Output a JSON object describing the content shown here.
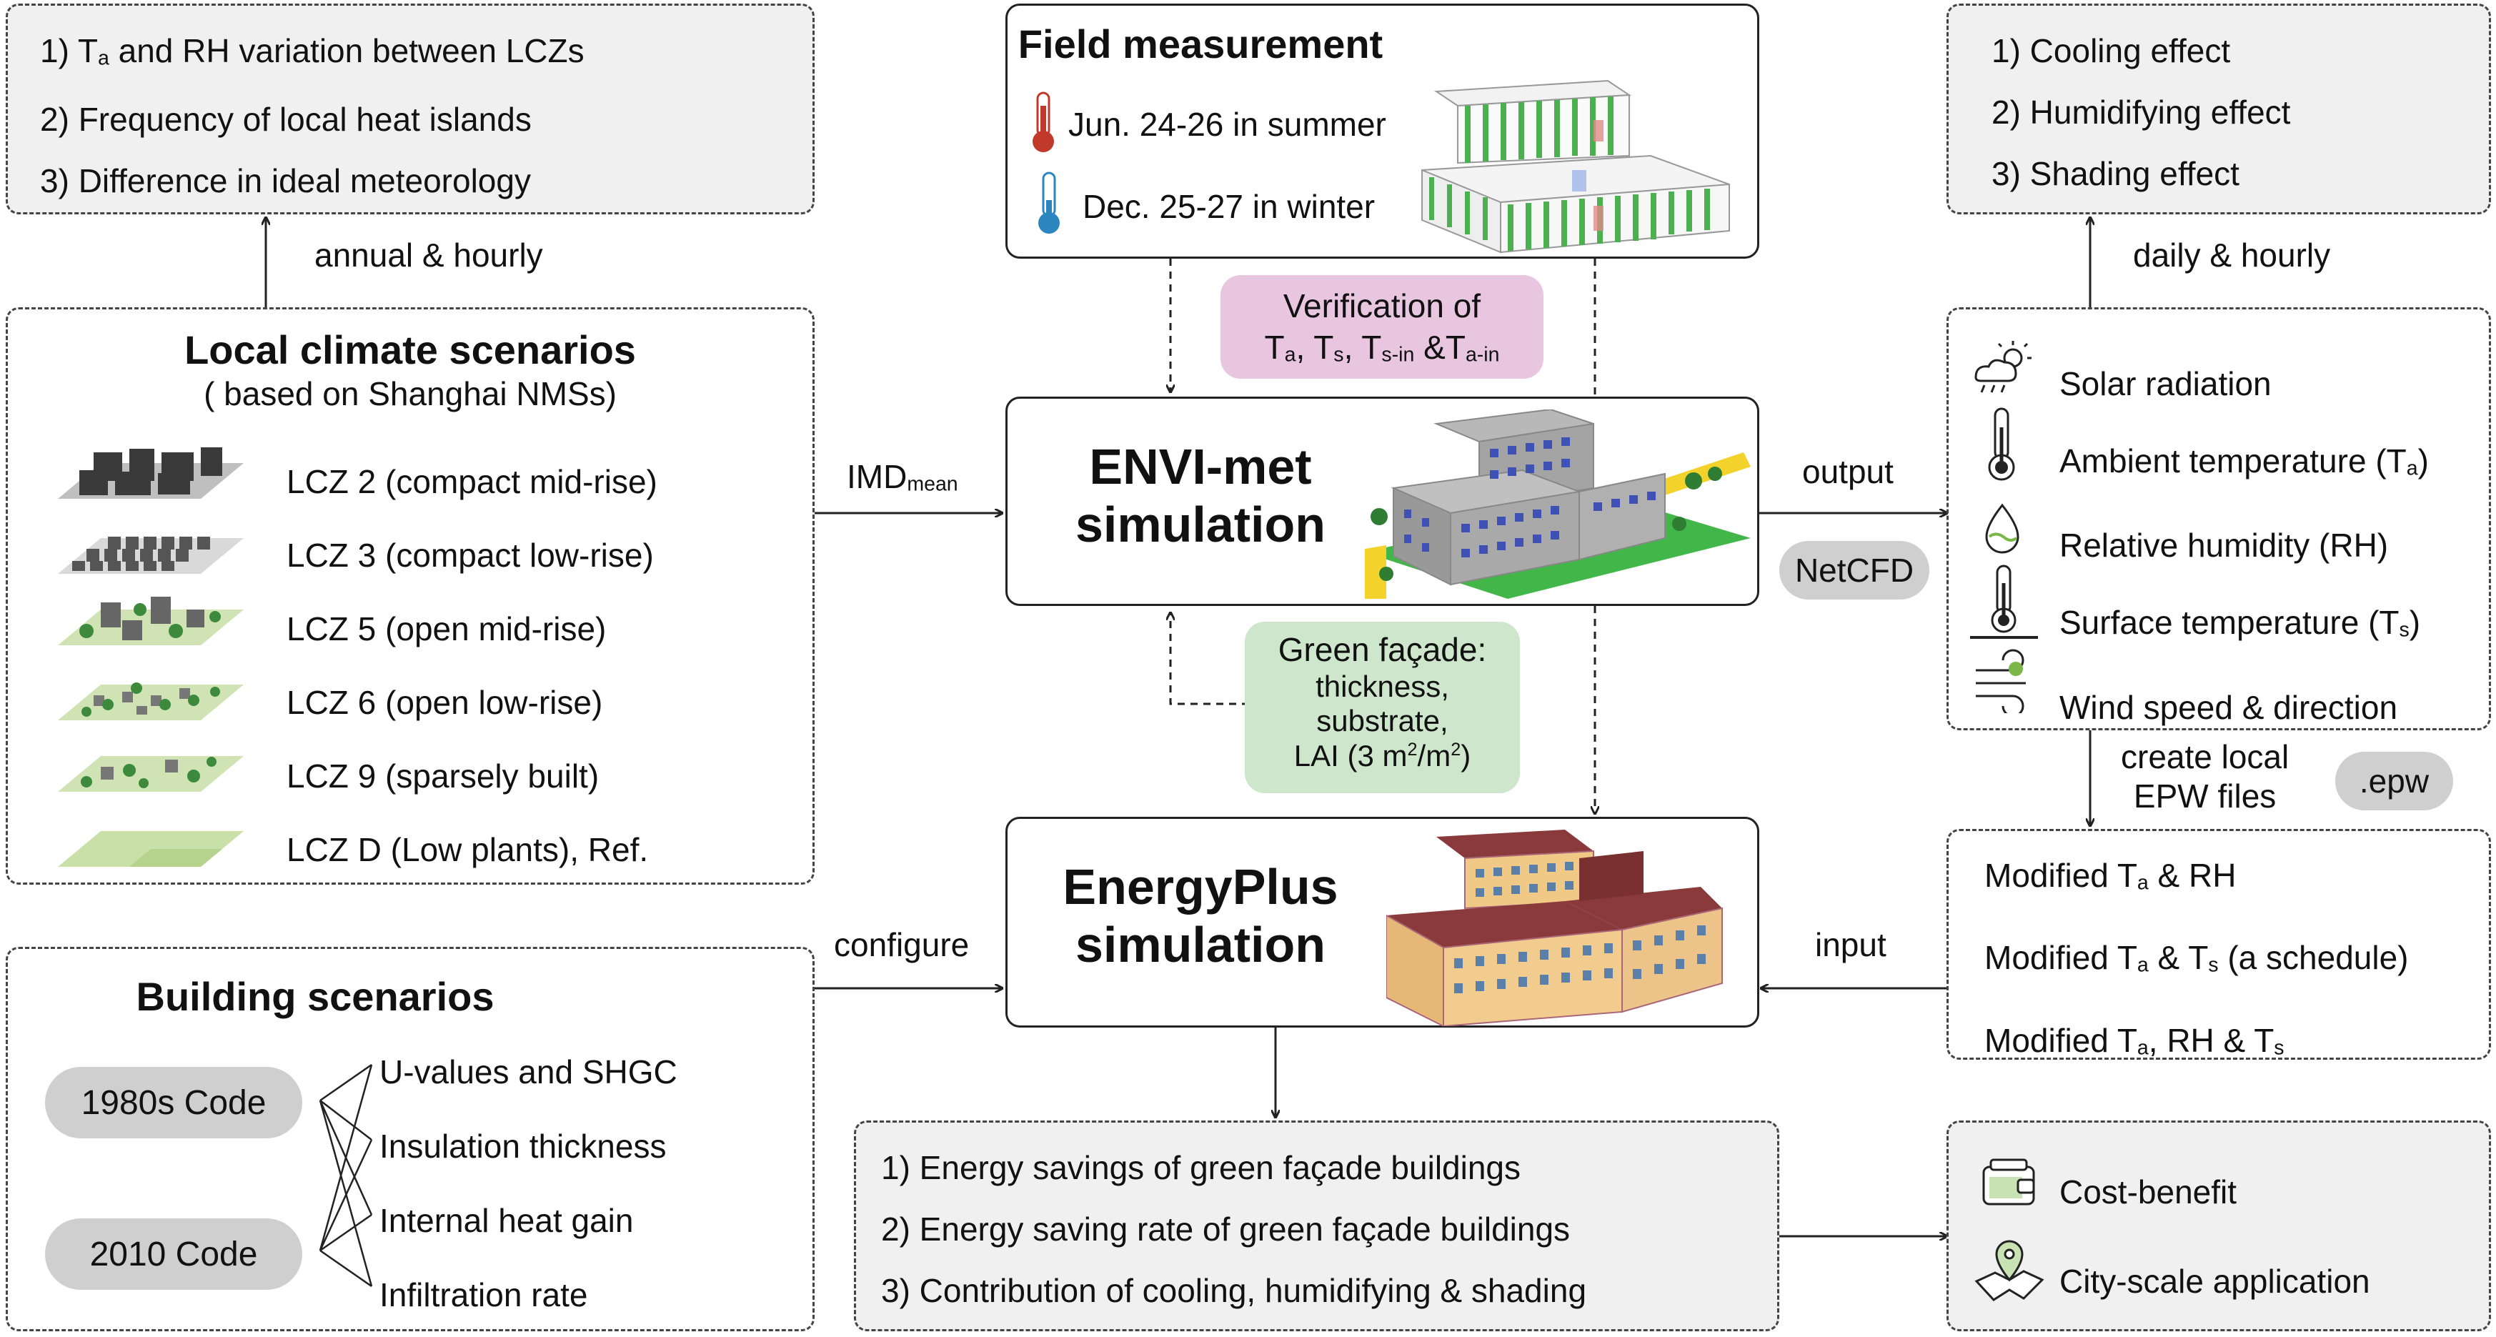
{
  "lcz_outputs": {
    "items": [
      {
        "num": "1) ",
        "pre": "T",
        "sub": "a",
        "post": " and RH variation between LCZs"
      },
      {
        "num": "2) ",
        "pre": "Frequency of local heat islands",
        "sub": "",
        "post": ""
      },
      {
        "num": "3) ",
        "pre": "Difference in ideal meteorology",
        "sub": "",
        "post": ""
      }
    ]
  },
  "label_annual_hourly": "annual & hourly",
  "local_climate": {
    "title": "Local climate scenarios",
    "subtitle": "( based on Shanghai NMSs)",
    "items": [
      "LCZ 2 (compact mid-rise)",
      "LCZ 3 (compact low-rise)",
      "LCZ 5 (open mid-rise)",
      "LCZ 6 (open low-rise)",
      "LCZ 9 (sparsely built)",
      "LCZ D (Low plants), Ref."
    ]
  },
  "label_imd": {
    "main": "IMD",
    "sub": "mean"
  },
  "field": {
    "title": "Field measurement",
    "summer": "Jun. 24-26 in summer",
    "winter": "Dec. 25-27 in winter"
  },
  "verification": {
    "line1": "Verification of",
    "parts": [
      {
        "t": "T",
        "s": "a",
        "after": ", "
      },
      {
        "t": "T",
        "s": "s",
        "after": ", "
      },
      {
        "t": "T",
        "s": "s-in",
        "after": " &"
      },
      {
        "t": "T",
        "s": "a-in",
        "after": ""
      }
    ]
  },
  "envimet": {
    "line1": "ENVI-met",
    "line2": "simulation"
  },
  "label_output": "output",
  "netcfd": "NetCFD",
  "green_facade": {
    "line1": "Green façade:",
    "line2": "thickness,",
    "line3": "substrate,",
    "line4_pre": "LAI (3 m",
    "line4_mid": "/m",
    "line4_post": ")",
    "sup": "2"
  },
  "energyplus": {
    "line1": "EnergyPlus",
    "line2": "simulation"
  },
  "label_configure": "configure",
  "label_input": "input",
  "building": {
    "title": "Building scenarios",
    "codes": [
      "1980s Code",
      "2010 Code"
    ],
    "params": [
      "U-values and SHGC",
      "Insulation thickness",
      "Internal heat gain",
      "Infiltration rate"
    ]
  },
  "effects": {
    "items": [
      "1) Cooling effect",
      "2) Humidifying effect",
      "3) Shading effect"
    ]
  },
  "label_daily_hourly": "daily & hourly",
  "meteo": {
    "items": [
      {
        "pre": "Solar radiation",
        "sub": "",
        "post": ""
      },
      {
        "pre": "Ambient temperature (T",
        "sub": "a",
        "post": ")"
      },
      {
        "pre": "Relative humidity (RH)",
        "sub": "",
        "post": ""
      },
      {
        "pre": "Surface temperature (T",
        "sub": "s",
        "post": ")"
      },
      {
        "pre": "Wind speed & direction",
        "sub": "",
        "post": ""
      }
    ]
  },
  "label_epw": {
    "line1": "create local",
    "line2": "EPW files"
  },
  "epw_pill": ".epw",
  "modified": {
    "items": [
      [
        {
          "t": "Modified T",
          "s": "a"
        },
        {
          "t": " & RH",
          "s": ""
        }
      ],
      [
        {
          "t": "Modified T",
          "s": "a"
        },
        {
          "t": " & T",
          "s": "s"
        },
        {
          "t": " (a schedule)",
          "s": ""
        }
      ],
      [
        {
          "t": "Modified T",
          "s": "a"
        },
        {
          "t": ", RH & T",
          "s": "s"
        }
      ]
    ]
  },
  "savings": {
    "items": [
      "1) Energy savings of green façade buildings",
      "2) Energy saving rate of green façade buildings",
      "3) Contribution of cooling, humidifying & shading"
    ]
  },
  "application": {
    "items": [
      "Cost-benefit",
      "City-scale application"
    ]
  },
  "colors": {
    "verification_bg": "#e8c6df",
    "green_bg": "#cde6cc",
    "pill_bg": "#cfcfcf",
    "box_gray": "#f0f0f0",
    "plant_green": "#3fae49",
    "building_gray": "#a9a9a9",
    "building_brick": "#8a3a3a"
  }
}
